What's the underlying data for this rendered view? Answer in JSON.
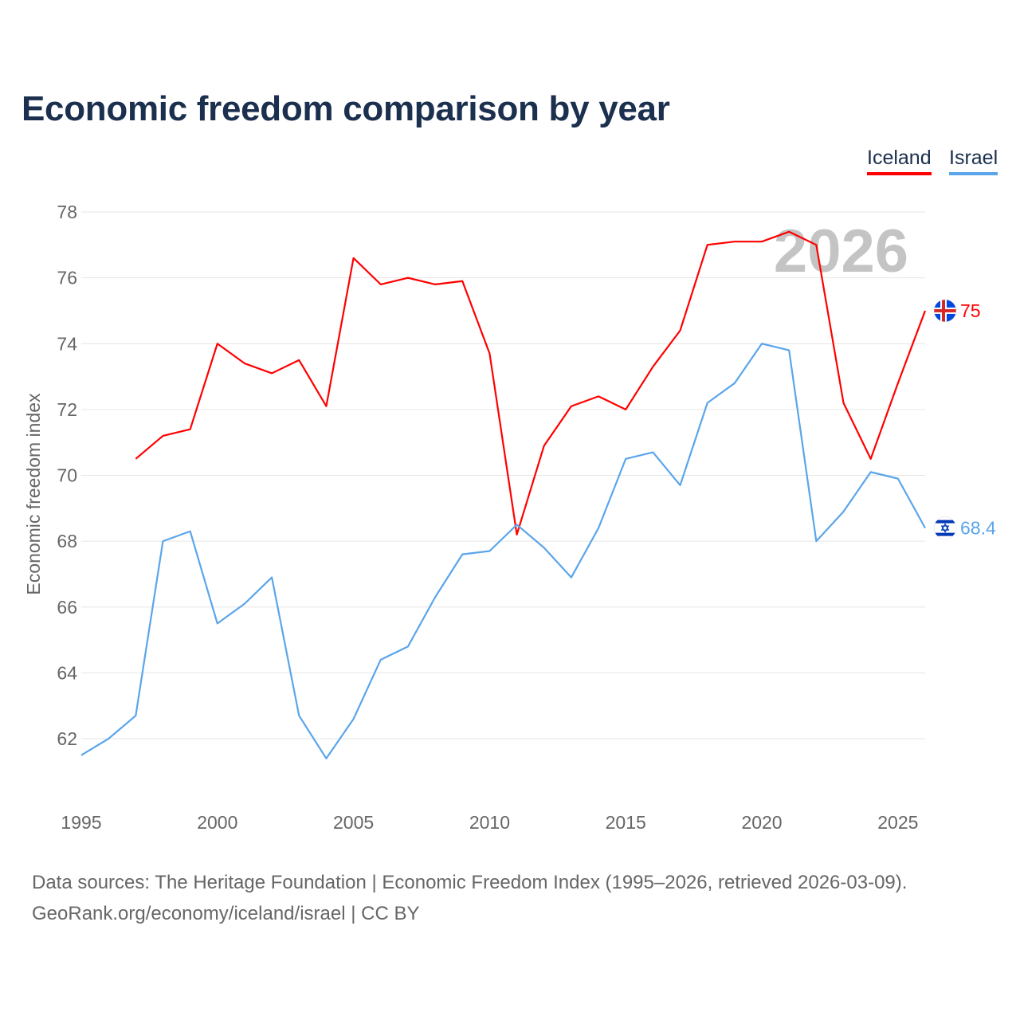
{
  "chart_data": {
    "type": "line",
    "title": "Economic freedom comparison by year",
    "xlabel": "",
    "ylabel": "Economic freedom index",
    "xlim": [
      1995,
      2026
    ],
    "ylim": [
      60.5,
      78
    ],
    "yticks": [
      62,
      64,
      66,
      68,
      70,
      72,
      74,
      76,
      78
    ],
    "xticks": [
      1995,
      2000,
      2005,
      2010,
      2015,
      2020,
      2025
    ],
    "grid": true,
    "legend_position": "top-right",
    "watermark": "2026",
    "series": [
      {
        "name": "Iceland",
        "color": "#ff0000",
        "end_label": "75",
        "icon": "iceland-flag-icon",
        "x": [
          1997,
          1998,
          1999,
          2000,
          2001,
          2002,
          2003,
          2004,
          2005,
          2006,
          2007,
          2008,
          2009,
          2010,
          2011,
          2012,
          2013,
          2014,
          2015,
          2016,
          2017,
          2018,
          2019,
          2020,
          2021,
          2022,
          2023,
          2024,
          2025,
          2026
        ],
        "values": [
          70.5,
          71.2,
          71.4,
          74.0,
          73.4,
          73.1,
          73.5,
          72.1,
          76.6,
          75.8,
          76.0,
          75.8,
          75.9,
          73.7,
          68.2,
          70.9,
          72.1,
          72.4,
          72.0,
          73.3,
          74.4,
          77.0,
          77.1,
          77.1,
          77.4,
          77.0,
          72.2,
          70.5,
          72.8,
          75.0
        ]
      },
      {
        "name": "Israel",
        "color": "#5aa5ea",
        "end_label": "68.4",
        "icon": "israel-flag-icon",
        "x": [
          1995,
          1996,
          1997,
          1998,
          1999,
          2000,
          2001,
          2002,
          2003,
          2004,
          2005,
          2006,
          2007,
          2008,
          2009,
          2010,
          2011,
          2012,
          2013,
          2014,
          2015,
          2016,
          2017,
          2018,
          2019,
          2020,
          2021,
          2022,
          2023,
          2024,
          2025,
          2026
        ],
        "values": [
          61.5,
          62.0,
          62.7,
          68.0,
          68.3,
          65.5,
          66.1,
          66.9,
          62.7,
          61.4,
          62.6,
          64.4,
          64.8,
          66.3,
          67.6,
          67.7,
          68.5,
          67.8,
          66.9,
          68.4,
          70.5,
          70.7,
          69.7,
          72.2,
          72.8,
          74.0,
          73.8,
          68.0,
          68.9,
          70.1,
          69.9,
          68.4
        ]
      }
    ]
  },
  "footer": {
    "source_line": "Data sources: The Heritage Foundation | Economic Freedom Index (1995–2026, retrieved 2026-03-09).",
    "credit_line": "GeoRank.org/economy/iceland/israel | CC BY"
  }
}
